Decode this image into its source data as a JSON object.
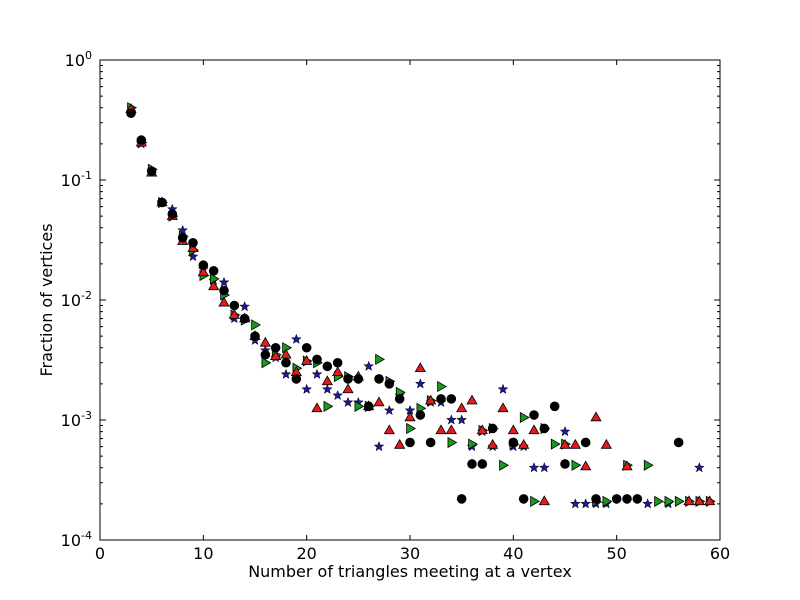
{
  "chart_data": {
    "type": "scatter",
    "title": "",
    "xlabel": "Number of triangles meeting at a vertex",
    "ylabel": "Fraction of vertices",
    "xlim": [
      0,
      60
    ],
    "ylim": [
      0.0001,
      1
    ],
    "yscale": "log",
    "grid": false,
    "legend": false,
    "x_ticks": [
      0,
      10,
      20,
      30,
      40,
      50,
      60
    ],
    "x_tick_labels": [
      "0",
      "10",
      "20",
      "30",
      "40",
      "50",
      "60"
    ],
    "y_ticks": [
      0.0001,
      0.001,
      0.01,
      0.1,
      1
    ],
    "y_tick_labels": [
      {
        "base": "10",
        "exp": "-4"
      },
      {
        "base": "10",
        "exp": "-3"
      },
      {
        "base": "10",
        "exp": "-2"
      },
      {
        "base": "10",
        "exp": "-1"
      },
      {
        "base": "10",
        "exp": "0"
      }
    ],
    "series": [
      {
        "marker": "circle",
        "color": "#000000",
        "points": [
          [
            3,
            0.36
          ],
          [
            4,
            0.215
          ],
          [
            5,
            0.118
          ],
          [
            6,
            0.065
          ],
          [
            7,
            0.052
          ],
          [
            8,
            0.033
          ],
          [
            9,
            0.03
          ],
          [
            10,
            0.0195
          ],
          [
            11,
            0.0175
          ],
          [
            12,
            0.012
          ],
          [
            13,
            0.009
          ],
          [
            14,
            0.007
          ],
          [
            15,
            0.005
          ],
          [
            16,
            0.0035
          ],
          [
            17,
            0.004
          ],
          [
            18,
            0.003
          ],
          [
            19,
            0.0022
          ],
          [
            20,
            0.004
          ],
          [
            21,
            0.0032
          ],
          [
            22,
            0.0028
          ],
          [
            23,
            0.003
          ],
          [
            24,
            0.0022
          ],
          [
            25,
            0.0022
          ],
          [
            26,
            0.0013
          ],
          [
            27,
            0.0022
          ],
          [
            28,
            0.002
          ],
          [
            29,
            0.0015
          ],
          [
            30,
            0.00065
          ],
          [
            31,
            0.0011
          ],
          [
            32,
            0.00065
          ],
          [
            33,
            0.0015
          ],
          [
            34,
            0.0015
          ],
          [
            35,
            0.00022
          ],
          [
            36,
            0.00043
          ],
          [
            37,
            0.00043
          ],
          [
            38,
            0.00085
          ],
          [
            40,
            0.00065
          ],
          [
            41,
            0.00022
          ],
          [
            42,
            0.0011
          ],
          [
            43,
            0.00085
          ],
          [
            44,
            0.0013
          ],
          [
            45,
            0.00043
          ],
          [
            47,
            0.00065
          ],
          [
            48,
            0.00022
          ],
          [
            50,
            0.00022
          ],
          [
            51,
            0.00022
          ],
          [
            52,
            0.00022
          ],
          [
            56,
            0.00065
          ]
        ]
      },
      {
        "marker": "triangle-up",
        "color": "#e41a1c",
        "points": [
          [
            3,
            0.39
          ],
          [
            4,
            0.205
          ],
          [
            5,
            0.115
          ],
          [
            6,
            0.065
          ],
          [
            7,
            0.05
          ],
          [
            8,
            0.031
          ],
          [
            9,
            0.027
          ],
          [
            10,
            0.017
          ],
          [
            11,
            0.013
          ],
          [
            12,
            0.0095
          ],
          [
            13,
            0.0075
          ],
          [
            14,
            0.007
          ],
          [
            15,
            0.005
          ],
          [
            16,
            0.0044
          ],
          [
            17,
            0.0034
          ],
          [
            18,
            0.0035
          ],
          [
            19,
            0.0025
          ],
          [
            20,
            0.0031
          ],
          [
            21,
            0.00125
          ],
          [
            22,
            0.0021
          ],
          [
            23,
            0.0025
          ],
          [
            24,
            0.0018
          ],
          [
            25,
            0.0023
          ],
          [
            26,
            0.0013
          ],
          [
            27,
            0.0014
          ],
          [
            28,
            0.00082
          ],
          [
            29,
            0.00062
          ],
          [
            30,
            0.00105
          ],
          [
            31,
            0.0027
          ],
          [
            32,
            0.00145
          ],
          [
            33,
            0.00082
          ],
          [
            34,
            0.00082
          ],
          [
            35,
            0.00125
          ],
          [
            36,
            0.00145
          ],
          [
            37,
            0.00082
          ],
          [
            38,
            0.00062
          ],
          [
            39,
            0.00125
          ],
          [
            40,
            0.00082
          ],
          [
            41,
            0.00062
          ],
          [
            42,
            0.00082
          ],
          [
            43,
            0.00021
          ],
          [
            45,
            0.00062
          ],
          [
            46,
            0.00062
          ],
          [
            47,
            0.00041
          ],
          [
            48,
            0.00105
          ],
          [
            49,
            0.00062
          ],
          [
            51,
            0.00041
          ],
          [
            57,
            0.00021
          ],
          [
            58,
            0.00021
          ],
          [
            59,
            0.00021
          ]
        ]
      },
      {
        "marker": "triangle-right",
        "color": "#1a9a1a",
        "points": [
          [
            3,
            0.4
          ],
          [
            4,
            0.205
          ],
          [
            5,
            0.123
          ],
          [
            6,
            0.065
          ],
          [
            7,
            0.05
          ],
          [
            8,
            0.034
          ],
          [
            9,
            0.026
          ],
          [
            10,
            0.016
          ],
          [
            11,
            0.015
          ],
          [
            12,
            0.011
          ],
          [
            13,
            0.0075
          ],
          [
            14,
            0.0068
          ],
          [
            15,
            0.0062
          ],
          [
            16,
            0.003
          ],
          [
            17,
            0.0035
          ],
          [
            18,
            0.004
          ],
          [
            19,
            0.0027
          ],
          [
            20,
            0.0031
          ],
          [
            21,
            0.003
          ],
          [
            22,
            0.0013
          ],
          [
            23,
            0.0023
          ],
          [
            24,
            0.0023
          ],
          [
            25,
            0.0013
          ],
          [
            26,
            0.0013
          ],
          [
            27,
            0.0032
          ],
          [
            28,
            0.0021
          ],
          [
            29,
            0.0017
          ],
          [
            30,
            0.00085
          ],
          [
            31,
            0.00125
          ],
          [
            32,
            0.00145
          ],
          [
            33,
            0.0019
          ],
          [
            34,
            0.00065
          ],
          [
            36,
            0.00063
          ],
          [
            37,
            0.00082
          ],
          [
            38,
            0.00085
          ],
          [
            39,
            0.00042
          ],
          [
            40,
            0.00063
          ],
          [
            41,
            0.00105
          ],
          [
            42,
            0.00021
          ],
          [
            43,
            0.00085
          ],
          [
            44,
            0.00063
          ],
          [
            45,
            0.00063
          ],
          [
            46,
            0.00042
          ],
          [
            48,
            0.00021
          ],
          [
            49,
            0.00021
          ],
          [
            51,
            0.00042
          ],
          [
            53,
            0.00042
          ],
          [
            54,
            0.00021
          ],
          [
            55,
            0.00021
          ],
          [
            56,
            0.00021
          ],
          [
            57,
            0.00021
          ],
          [
            58,
            0.00021
          ],
          [
            59,
            0.00021
          ]
        ]
      },
      {
        "marker": "star",
        "color": "#1a1a99",
        "points": [
          [
            3,
            0.37
          ],
          [
            4,
            0.2
          ],
          [
            5,
            0.12
          ],
          [
            6,
            0.065
          ],
          [
            7,
            0.057
          ],
          [
            8,
            0.038
          ],
          [
            9,
            0.023
          ],
          [
            10,
            0.018
          ],
          [
            11,
            0.0145
          ],
          [
            12,
            0.014
          ],
          [
            13,
            0.007
          ],
          [
            14,
            0.0088
          ],
          [
            15,
            0.0046
          ],
          [
            16,
            0.0038
          ],
          [
            17,
            0.0033
          ],
          [
            18,
            0.0024
          ],
          [
            19,
            0.0047
          ],
          [
            20,
            0.0018
          ],
          [
            21,
            0.0024
          ],
          [
            22,
            0.0018
          ],
          [
            23,
            0.0016
          ],
          [
            24,
            0.0014
          ],
          [
            25,
            0.0014
          ],
          [
            26,
            0.0028
          ],
          [
            27,
            0.0006
          ],
          [
            28,
            0.0012
          ],
          [
            29,
            0.0016
          ],
          [
            30,
            0.0012
          ],
          [
            31,
            0.002
          ],
          [
            32,
            0.0014
          ],
          [
            33,
            0.0014
          ],
          [
            34,
            0.001
          ],
          [
            35,
            0.001
          ],
          [
            36,
            0.0006
          ],
          [
            37,
            0.0008
          ],
          [
            38,
            0.0006
          ],
          [
            39,
            0.0018
          ],
          [
            40,
            0.0006
          ],
          [
            41,
            0.0006
          ],
          [
            42,
            0.0004
          ],
          [
            43,
            0.0004
          ],
          [
            45,
            0.0008
          ],
          [
            46,
            0.0002
          ],
          [
            47,
            0.0002
          ],
          [
            48,
            0.0002
          ],
          [
            49,
            0.0002
          ],
          [
            53,
            0.0002
          ],
          [
            55,
            0.0002
          ],
          [
            58,
            0.0004
          ]
        ]
      }
    ]
  }
}
